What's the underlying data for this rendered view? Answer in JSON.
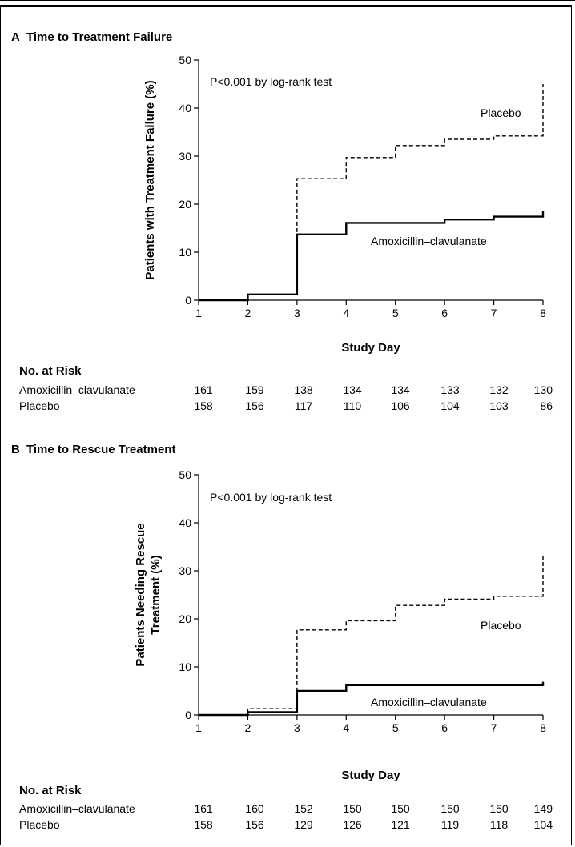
{
  "chart_data": [
    {
      "type": "line",
      "panel_letter": "A",
      "title": "Time to Treatment Failure",
      "xlabel": "Study Day",
      "ylabel": "Patients with Treatment Failure (%)",
      "annotation": "P<0.001 by log-rank test",
      "xlim": [
        1,
        8
      ],
      "ylim": [
        0,
        50
      ],
      "x_ticks": [
        "1",
        "2",
        "3",
        "4",
        "5",
        "6",
        "7",
        "8"
      ],
      "y_ticks": [
        "0",
        "10",
        "20",
        "30",
        "40",
        "50"
      ],
      "series": [
        {
          "name": "Placebo",
          "style": "dashed",
          "x": [
            1,
            2,
            3,
            4,
            5,
            6,
            7,
            8,
            8
          ],
          "y": [
            0,
            1.2,
            25.3,
            29.7,
            32.2,
            33.5,
            34.2,
            34.2,
            45
          ]
        },
        {
          "name": "Amoxicillin–clavulanate",
          "style": "solid",
          "x": [
            1,
            2,
            3,
            4,
            5,
            6,
            7,
            8,
            8
          ],
          "y": [
            0,
            1.2,
            13.7,
            16.1,
            16.1,
            16.8,
            17.4,
            17.4,
            18.6
          ]
        }
      ],
      "risk_table": {
        "heading": "No. at Risk",
        "rows": [
          {
            "label": "Amoxicillin–clavulanate",
            "values": [
              "161",
              "159",
              "138",
              "134",
              "134",
              "133",
              "132",
              "130"
            ]
          },
          {
            "label": "Placebo",
            "values": [
              "158",
              "156",
              "117",
              "110",
              "106",
              "104",
              "103",
              "86"
            ]
          }
        ]
      }
    },
    {
      "type": "line",
      "panel_letter": "B",
      "title": "Time to Rescue Treatment",
      "xlabel": "Study Day",
      "ylabel": "Patients Needing Rescue Treatment (%)",
      "ylabel_lines": [
        "Patients Needing Rescue",
        "Treatment (%)"
      ],
      "annotation": "P<0.001 by log-rank test",
      "xlim": [
        1,
        8
      ],
      "ylim": [
        0,
        50
      ],
      "x_ticks": [
        "1",
        "2",
        "3",
        "4",
        "5",
        "6",
        "7",
        "8"
      ],
      "y_ticks": [
        "0",
        "10",
        "20",
        "30",
        "40",
        "50"
      ],
      "series": [
        {
          "name": "Placebo",
          "style": "dashed",
          "x": [
            1,
            2,
            3,
            4,
            5,
            6,
            7,
            8,
            8
          ],
          "y": [
            0,
            1.3,
            17.7,
            19.6,
            22.8,
            24.1,
            24.7,
            24.7,
            33.5
          ]
        },
        {
          "name": "Amoxicillin–clavulanate",
          "style": "solid",
          "x": [
            1,
            2,
            3,
            4,
            5,
            6,
            7,
            8,
            8
          ],
          "y": [
            0,
            0.6,
            5.0,
            6.2,
            6.2,
            6.2,
            6.2,
            6.2,
            6.9
          ]
        }
      ],
      "risk_table": {
        "heading": "No. at Risk",
        "rows": [
          {
            "label": "Amoxicillin–clavulanate",
            "values": [
              "161",
              "160",
              "152",
              "150",
              "150",
              "150",
              "150",
              "149"
            ]
          },
          {
            "label": "Placebo",
            "values": [
              "158",
              "156",
              "129",
              "126",
              "121",
              "119",
              "118",
              "104"
            ]
          }
        ]
      }
    }
  ]
}
